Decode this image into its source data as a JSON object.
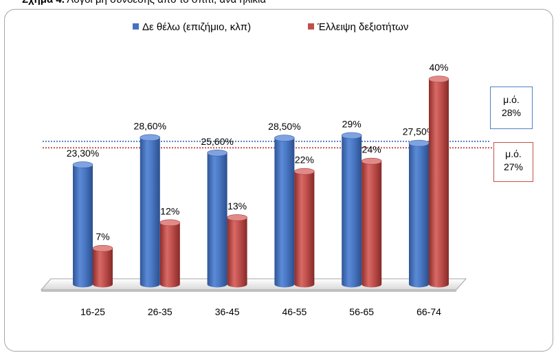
{
  "caption": {
    "prefix": "Σχήμα 4.",
    "text": " Λόγοι μη σύνδεσης από το σπίτι, ανά ηλικία"
  },
  "colors": {
    "series_blue": "#4472c4",
    "series_red": "#c0504d",
    "avg_blue_line": "#4f81bd",
    "avg_red_line": "#c0504d"
  },
  "averages": {
    "blue": {
      "label": "μ.ό.",
      "value_text": "28%",
      "value": 28
    },
    "red": {
      "label": "μ.ό.",
      "value_text": "27%",
      "value": 27
    }
  },
  "chart_data": {
    "type": "bar",
    "categories": [
      "16-25",
      "26-35",
      "36-45",
      "46-55",
      "56-65",
      "66-74"
    ],
    "series": [
      {
        "name": "Δε θέλω (επιζήμιο, κλπ)",
        "color": "#4472c4",
        "values": [
          23.3,
          28.6,
          25.6,
          28.5,
          29,
          27.5
        ],
        "labels": [
          "23,30%",
          "28,60%",
          "25,60%",
          "28,50%",
          "29%",
          "27,50%"
        ]
      },
      {
        "name": "Έλλειψη δεξιοτήτων",
        "color": "#c0504d",
        "values": [
          7,
          12,
          13,
          22,
          24,
          40
        ],
        "labels": [
          "7%",
          "12%",
          "13%",
          "22%",
          "24%",
          "40%"
        ]
      }
    ],
    "legend": "top",
    "grid": false
  }
}
